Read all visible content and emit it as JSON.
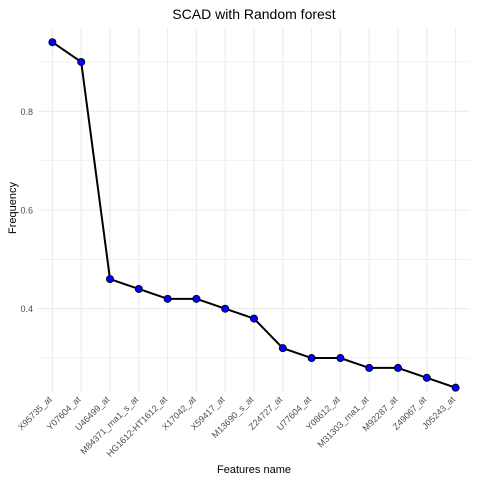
{
  "chart_data": {
    "type": "line",
    "title": "SCAD with Random forest",
    "xlabel": "Features name",
    "ylabel": "Frequency",
    "categories": [
      "X95735_at",
      "Y07604_at",
      "U46499_at",
      "M84371_rna1_s_at",
      "HG1612-HT1612_at",
      "X17042_at",
      "X59417_at",
      "M13690_s_at",
      "Z24727_at",
      "U77604_at",
      "Y08612_at",
      "M31303_rna1_at",
      "M92287_at",
      "Z49067_at",
      "J05243_at"
    ],
    "values": [
      0.94,
      0.9,
      0.46,
      0.44,
      0.42,
      0.42,
      0.4,
      0.38,
      0.32,
      0.3,
      0.3,
      0.28,
      0.28,
      0.26,
      0.24
    ],
    "yticks": [
      0.4,
      0.6,
      0.8
    ],
    "yticklabels": [
      "0.4",
      "0.6",
      "0.8"
    ],
    "ylim": [
      0.2312,
      0.9688
    ],
    "grid": true,
    "legend": "none",
    "line_color": "#000000",
    "point_color": "#0000ff"
  }
}
